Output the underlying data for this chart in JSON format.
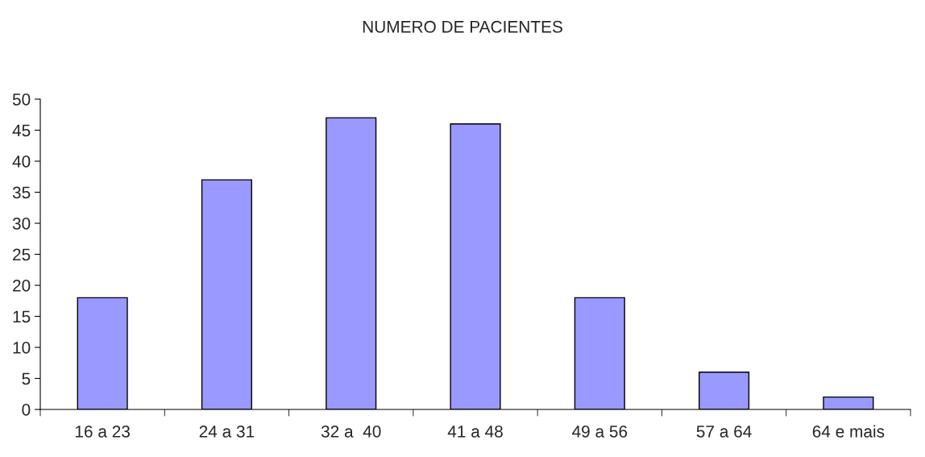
{
  "chart_data": {
    "type": "bar",
    "title": "NUMERO DE PACIENTES",
    "categories": [
      "16 a 23",
      "24 a 31",
      "32 a  40",
      "41 a 48",
      "49 a 56",
      "57 a 64",
      "64 e mais"
    ],
    "values": [
      18,
      37,
      47,
      46,
      18,
      6,
      2
    ],
    "color": "#9999ff",
    "ylim": [
      0,
      50
    ],
    "yticks": [
      0,
      5,
      10,
      15,
      20,
      25,
      30,
      35,
      40,
      45,
      50
    ],
    "grid": false
  }
}
